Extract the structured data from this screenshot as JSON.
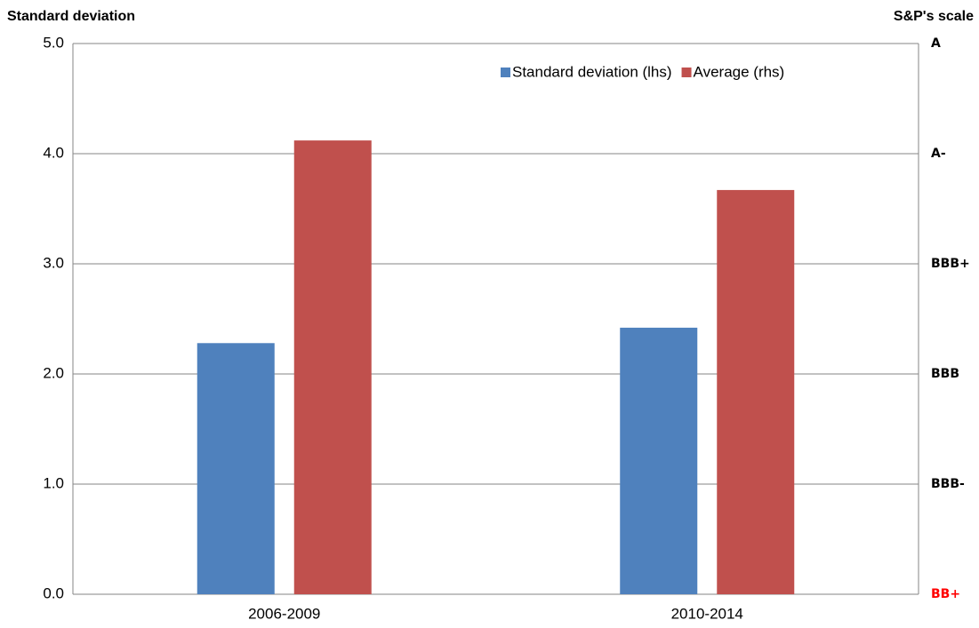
{
  "chart_data": {
    "type": "bar",
    "y_label": "Standard deviation",
    "y2_label": "S&P's scale",
    "categories": [
      "2006-2009",
      "2010-2014"
    ],
    "series": [
      {
        "name": "Standard deviation (lhs)",
        "color": "#4f81bd",
        "values": [
          2.28,
          2.42
        ]
      },
      {
        "name": "Average (rhs)",
        "color": "#c0504d",
        "values": [
          4.12,
          3.67
        ],
        "axis": "y2"
      }
    ],
    "ylim": [
      0,
      5
    ],
    "yticks": [
      {
        "value": 0,
        "label": "0.0"
      },
      {
        "value": 1,
        "label": "1.0"
      },
      {
        "value": 2,
        "label": "2.0"
      },
      {
        "value": 3,
        "label": "3.0"
      },
      {
        "value": 4,
        "label": "4.0"
      },
      {
        "value": 5,
        "label": "5.0"
      }
    ],
    "y2lim": [
      0,
      5
    ],
    "y2ticks": [
      {
        "value": 0,
        "label": "BB+",
        "color": "#ff0000"
      },
      {
        "value": 1,
        "label": "BBB-"
      },
      {
        "value": 2,
        "label": "BBB"
      },
      {
        "value": 3,
        "label": "BBB+"
      },
      {
        "value": 4,
        "label": "A-"
      },
      {
        "value": 5,
        "label": "A"
      }
    ],
    "grid": true,
    "legend": "top-right"
  }
}
